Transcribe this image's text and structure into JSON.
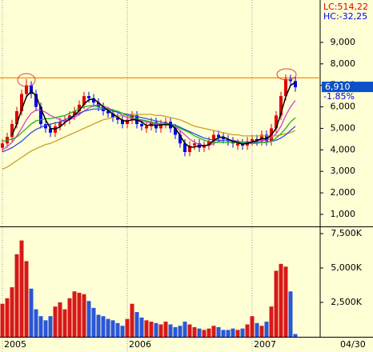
{
  "chart_data": [
    {
      "type": "candlestick",
      "lc_label": "LC:514,22",
      "hc_label": "HC:-32,25",
      "current_price": {
        "value": 6910,
        "label": "6,910"
      },
      "change": "-1.85%",
      "ylim": [
        440,
        10970
      ],
      "yticks": [
        {
          "value": 1000,
          "label": "1,000"
        },
        {
          "value": 2000,
          "label": "2,000"
        },
        {
          "value": 3000,
          "label": "3,000"
        },
        {
          "value": 4000,
          "label": "4,000"
        },
        {
          "value": 5000,
          "label": "5,000"
        },
        {
          "value": 6000,
          "label": "6,000"
        },
        {
          "value": 7000,
          "label": "7,000"
        },
        {
          "value": 8000,
          "label": "8,000"
        },
        {
          "value": 9000,
          "label": "9,000"
        }
      ],
      "hline": 7350,
      "hline_color": "#f08000",
      "up_color": "#e00000",
      "down_color": "#0000ee",
      "open": [
        4100,
        4300,
        4600,
        5200,
        5800,
        6600,
        7000,
        6600,
        6000,
        5200,
        5000,
        4800,
        5100,
        5300,
        5400,
        5600,
        5800,
        6100,
        6500,
        6400,
        6200,
        6000,
        5800,
        5700,
        5500,
        5400,
        5200,
        5400,
        5600,
        5200,
        5000,
        5100,
        5300,
        5000,
        5200,
        5300,
        5000,
        4700,
        4300,
        3900,
        4200,
        4300,
        4100,
        4200,
        4400,
        4700,
        4600,
        4500,
        4400,
        4200,
        4300,
        4200,
        4400,
        4500,
        4400,
        4700,
        4400,
        5000,
        5600,
        6500,
        7300,
        7200
      ],
      "high": [
        4500,
        4800,
        5400,
        6000,
        6800,
        7300,
        7200,
        6800,
        6200,
        5400,
        5200,
        5300,
        5500,
        5600,
        5800,
        6000,
        6300,
        6700,
        6700,
        6600,
        6400,
        6200,
        6000,
        5900,
        5700,
        5600,
        5600,
        5800,
        5800,
        5400,
        5300,
        5500,
        5500,
        5400,
        5500,
        5500,
        5200,
        4900,
        4500,
        4400,
        4500,
        4500,
        4400,
        4600,
        4900,
        4900,
        4800,
        4700,
        4600,
        4500,
        4500,
        4600,
        4700,
        4700,
        4900,
        4900,
        5200,
        5800,
        6700,
        7500,
        7500,
        7400
      ],
      "low": [
        3900,
        4100,
        4400,
        5000,
        5600,
        6400,
        6400,
        5800,
        5000,
        4800,
        4600,
        4600,
        4900,
        5100,
        5200,
        5400,
        5600,
        5900,
        6200,
        6000,
        5800,
        5600,
        5500,
        5300,
        5200,
        5000,
        5000,
        5200,
        5000,
        4900,
        4800,
        4900,
        4800,
        4800,
        5000,
        4800,
        4500,
        4100,
        3700,
        3700,
        4000,
        3900,
        3900,
        4000,
        4200,
        4400,
        4300,
        4200,
        4100,
        4000,
        4000,
        4000,
        4200,
        4200,
        4200,
        4200,
        4200,
        4800,
        5400,
        6300,
        7000,
        6700
      ],
      "close": [
        4300,
        4600,
        5200,
        5800,
        6600,
        7000,
        6600,
        6000,
        5200,
        5000,
        4800,
        5100,
        5300,
        5400,
        5600,
        5800,
        6100,
        6500,
        6400,
        6200,
        6000,
        5800,
        5700,
        5500,
        5400,
        5200,
        5400,
        5600,
        5200,
        5100,
        5100,
        5300,
        5000,
        5200,
        5300,
        5000,
        4700,
        4300,
        3900,
        4200,
        4300,
        4100,
        4200,
        4400,
        4700,
        4600,
        4500,
        4400,
        4300,
        4300,
        4200,
        4400,
        4500,
        4400,
        4700,
        4400,
        5000,
        5600,
        6500,
        7300,
        7200,
        6910
      ],
      "series": [
        {
          "color": "#cc44cc",
          "values": [
            4000,
            4150,
            4350,
            4650,
            5000,
            5400,
            5700,
            5850,
            5850,
            5750,
            5600,
            5500,
            5400,
            5350,
            5400,
            5500,
            5650,
            5800,
            5950,
            6050,
            6100,
            6050,
            5950,
            5850,
            5750,
            5600,
            5500,
            5450,
            5400,
            5350,
            5300,
            5250,
            5200,
            5200,
            5200,
            5150,
            5050,
            4900,
            4700,
            4500,
            4350,
            4250,
            4200,
            4200,
            4300,
            4400,
            4450,
            4450,
            4450,
            4400,
            4350,
            4350,
            4350,
            4400,
            4450,
            4450,
            4550,
            4750,
            5100,
            5600,
            6000,
            6300
          ]
        },
        {
          "color": "#c8a020",
          "values": [
            3100,
            3200,
            3350,
            3500,
            3650,
            3800,
            3950,
            4050,
            4150,
            4250,
            4300,
            4400,
            4500,
            4600,
            4700,
            4800,
            4900,
            5000,
            5100,
            5200,
            5300,
            5400,
            5450,
            5500,
            5550,
            5600,
            5650,
            5650,
            5650,
            5650,
            5650,
            5650,
            5600,
            5600,
            5550,
            5500,
            5450,
            5400,
            5300,
            5200,
            5100,
            5050,
            5000,
            4950,
            4900,
            4850,
            4800,
            4750,
            4700,
            4700,
            4650,
            4650,
            4650,
            4650,
            4650,
            4650,
            4650,
            4650,
            4700,
            4750,
            4800,
            4900
          ]
        },
        {
          "color": "#3050e0",
          "values": [
            3900,
            4000,
            4100,
            4250,
            4400,
            4600,
            4800,
            4950,
            5050,
            5150,
            5200,
            5250,
            5300,
            5400,
            5500,
            5600,
            5700,
            5800,
            5850,
            5900,
            5900,
            5900,
            5850,
            5800,
            5750,
            5700,
            5650,
            5600,
            5550,
            5500,
            5450,
            5400,
            5350,
            5300,
            5250,
            5200,
            5150,
            5050,
            4950,
            4850,
            4750,
            4650,
            4550,
            4500,
            4450,
            4450,
            4450,
            4450,
            4400,
            4400,
            4350,
            4350,
            4350,
            4350,
            4350,
            4350,
            4400,
            4450,
            4550,
            4700,
            4900,
            5100
          ]
        },
        {
          "color": "#20b020",
          "values": [
            4400,
            4450,
            4500,
            4600,
            4800,
            5000,
            5200,
            5350,
            5400,
            5450,
            5450,
            5500,
            5550,
            5600,
            5700,
            5800,
            5900,
            6000,
            6050,
            6050,
            6000,
            5950,
            5900,
            5850,
            5800,
            5700,
            5600,
            5500,
            5450,
            5400,
            5350,
            5300,
            5250,
            5200,
            5200,
            5150,
            5100,
            5000,
            4900,
            4800,
            4650,
            4550,
            4450,
            4400,
            4350,
            4350,
            4350,
            4350,
            4350,
            4350,
            4350,
            4300,
            4300,
            4300,
            4350,
            4350,
            4400,
            4550,
            4750,
            5000,
            5300,
            5500
          ]
        },
        {
          "color": "#000000",
          "values": [
            null,
            null,
            4700,
            5200,
            5870,
            6470,
            6730,
            6530,
            5930,
            5400,
            5000,
            4970,
            5070,
            5270,
            5430,
            5600,
            5830,
            6130,
            6330,
            6370,
            6200,
            6000,
            5830,
            5670,
            5530,
            5370,
            5330,
            5400,
            5400,
            5300,
            5130,
            5170,
            5130,
            5170,
            5170,
            5170,
            5000,
            4670,
            4300,
            4130,
            4130,
            4200,
            4200,
            4230,
            4430,
            4570,
            4600,
            4500,
            4400,
            4330,
            4270,
            4300,
            4370,
            4430,
            4530,
            4500,
            4700,
            5000,
            5700,
            6470,
            7000,
            7140
          ]
        }
      ]
    },
    {
      "type": "bar",
      "categories": [
        "2005",
        null,
        null,
        null,
        null,
        null,
        null,
        null,
        null,
        null,
        null,
        null,
        null,
        null,
        null,
        null,
        null,
        null,
        null,
        null,
        null,
        null,
        null,
        null,
        null,
        null,
        "2006",
        null,
        null,
        null,
        null,
        null,
        null,
        null,
        null,
        null,
        null,
        null,
        null,
        null,
        null,
        null,
        null,
        null,
        null,
        null,
        null,
        null,
        null,
        null,
        null,
        null,
        "2007",
        null,
        null,
        null,
        null,
        null,
        null,
        null,
        null,
        null
      ],
      "last_date": "04/30",
      "ylim": [
        0,
        7965
      ],
      "yticks": [
        {
          "value": 2500,
          "label": "2,500K"
        },
        {
          "value": 5000,
          "label": "5,000K"
        },
        {
          "value": 7500,
          "label": "7,500K"
        }
      ],
      "up_color": "#d81818",
      "down_color": "#2a56d8",
      "values": [
        2400,
        2800,
        3600,
        6000,
        7000,
        5500,
        3500,
        2000,
        1500,
        1200,
        1500,
        2200,
        2500,
        2000,
        2800,
        3300,
        3200,
        3100,
        2600,
        2100,
        1600,
        1500,
        1300,
        1200,
        1000,
        800,
        1300,
        2400,
        1800,
        1400,
        1200,
        1100,
        1000,
        900,
        1100,
        900,
        700,
        800,
        1100,
        900,
        700,
        600,
        500,
        600,
        800,
        700,
        500,
        500,
        600,
        500,
        600,
        900,
        1500,
        1000,
        800,
        1100,
        2200,
        4800,
        5300,
        5100,
        3300,
        200
      ]
    }
  ]
}
